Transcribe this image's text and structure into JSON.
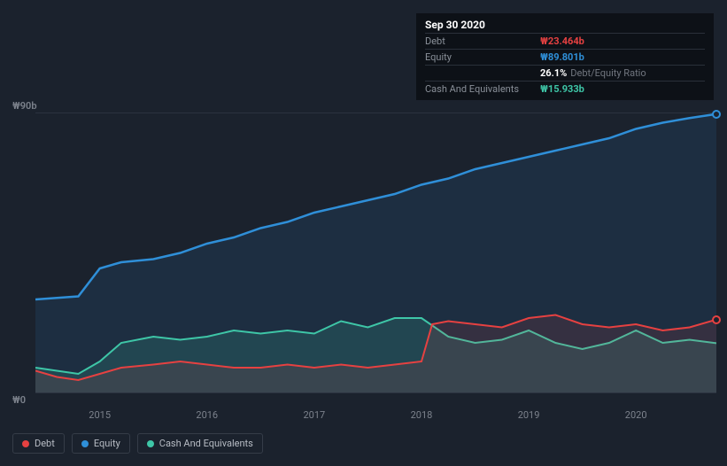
{
  "tooltip": {
    "date": "Sep 30 2020",
    "rows": [
      {
        "label": "Debt",
        "value": "₩23.464b",
        "cls": "debt"
      },
      {
        "label": "Equity",
        "value": "₩89.801b",
        "cls": "equity"
      },
      {
        "label": "",
        "value": "26.1%",
        "suffix": "Debt/Equity Ratio",
        "cls": "ratio"
      },
      {
        "label": "Cash And Equivalents",
        "value": "₩15.933b",
        "cls": "cash"
      }
    ]
  },
  "chart": {
    "background": "#1b222d",
    "grid_color": "#2b3240",
    "y_top_label": "₩90b",
    "y_bottom_label": "₩0",
    "x_start": 2014.4,
    "x_end": 2020.75,
    "x_ticks": [
      2015,
      2016,
      2017,
      2018,
      2019,
      2020
    ],
    "ylim": [
      0,
      90
    ],
    "series": {
      "equity": {
        "color": "#2f8fd8",
        "fill": "rgba(47,143,216,0.12)",
        "width": 2.5,
        "data": [
          [
            2014.4,
            30
          ],
          [
            2014.6,
            30.5
          ],
          [
            2014.8,
            31
          ],
          [
            2015.0,
            40
          ],
          [
            2015.2,
            42
          ],
          [
            2015.5,
            43
          ],
          [
            2015.75,
            45
          ],
          [
            2016.0,
            48
          ],
          [
            2016.25,
            50
          ],
          [
            2016.5,
            53
          ],
          [
            2016.75,
            55
          ],
          [
            2017.0,
            58
          ],
          [
            2017.25,
            60
          ],
          [
            2017.5,
            62
          ],
          [
            2017.75,
            64
          ],
          [
            2018.0,
            67
          ],
          [
            2018.25,
            69
          ],
          [
            2018.5,
            72
          ],
          [
            2018.75,
            74
          ],
          [
            2019.0,
            76
          ],
          [
            2019.25,
            78
          ],
          [
            2019.5,
            80
          ],
          [
            2019.75,
            82
          ],
          [
            2020.0,
            85
          ],
          [
            2020.25,
            87
          ],
          [
            2020.5,
            88.5
          ],
          [
            2020.75,
            89.8
          ]
        ]
      },
      "cash": {
        "color": "#3ec6a7",
        "fill": "rgba(62,198,167,0.16)",
        "width": 2,
        "data": [
          [
            2014.4,
            8
          ],
          [
            2014.6,
            7
          ],
          [
            2014.8,
            6
          ],
          [
            2015.0,
            10
          ],
          [
            2015.2,
            16
          ],
          [
            2015.5,
            18
          ],
          [
            2015.75,
            17
          ],
          [
            2016.0,
            18
          ],
          [
            2016.25,
            20
          ],
          [
            2016.5,
            19
          ],
          [
            2016.75,
            20
          ],
          [
            2017.0,
            19
          ],
          [
            2017.25,
            23
          ],
          [
            2017.5,
            21
          ],
          [
            2017.75,
            24
          ],
          [
            2018.0,
            24
          ],
          [
            2018.25,
            18
          ],
          [
            2018.5,
            16
          ],
          [
            2018.75,
            17
          ],
          [
            2019.0,
            20
          ],
          [
            2019.25,
            16
          ],
          [
            2019.5,
            14
          ],
          [
            2019.75,
            16
          ],
          [
            2020.0,
            20
          ],
          [
            2020.25,
            16
          ],
          [
            2020.5,
            17
          ],
          [
            2020.75,
            15.9
          ]
        ]
      },
      "debt": {
        "color": "#e64141",
        "fill": "rgba(230,65,65,0.12)",
        "width": 2,
        "data": [
          [
            2014.4,
            7
          ],
          [
            2014.6,
            5
          ],
          [
            2014.8,
            4
          ],
          [
            2015.0,
            6
          ],
          [
            2015.2,
            8
          ],
          [
            2015.5,
            9
          ],
          [
            2015.75,
            10
          ],
          [
            2016.0,
            9
          ],
          [
            2016.25,
            8
          ],
          [
            2016.5,
            8
          ],
          [
            2016.75,
            9
          ],
          [
            2017.0,
            8
          ],
          [
            2017.25,
            9
          ],
          [
            2017.5,
            8
          ],
          [
            2017.75,
            9
          ],
          [
            2018.0,
            10
          ],
          [
            2018.1,
            22
          ],
          [
            2018.25,
            23
          ],
          [
            2018.5,
            22
          ],
          [
            2018.75,
            21
          ],
          [
            2019.0,
            24
          ],
          [
            2019.25,
            25
          ],
          [
            2019.5,
            22
          ],
          [
            2019.75,
            21
          ],
          [
            2020.0,
            22
          ],
          [
            2020.25,
            20
          ],
          [
            2020.5,
            21
          ],
          [
            2020.75,
            23.5
          ]
        ]
      }
    },
    "markers": [
      {
        "series": "equity",
        "x": 2020.75,
        "y": 89.8
      },
      {
        "series": "debt",
        "x": 2020.75,
        "y": 23.5
      }
    ]
  },
  "legend": [
    {
      "label": "Debt",
      "color": "#e64141"
    },
    {
      "label": "Equity",
      "color": "#2f8fd8"
    },
    {
      "label": "Cash And Equivalents",
      "color": "#3ec6a7"
    }
  ]
}
